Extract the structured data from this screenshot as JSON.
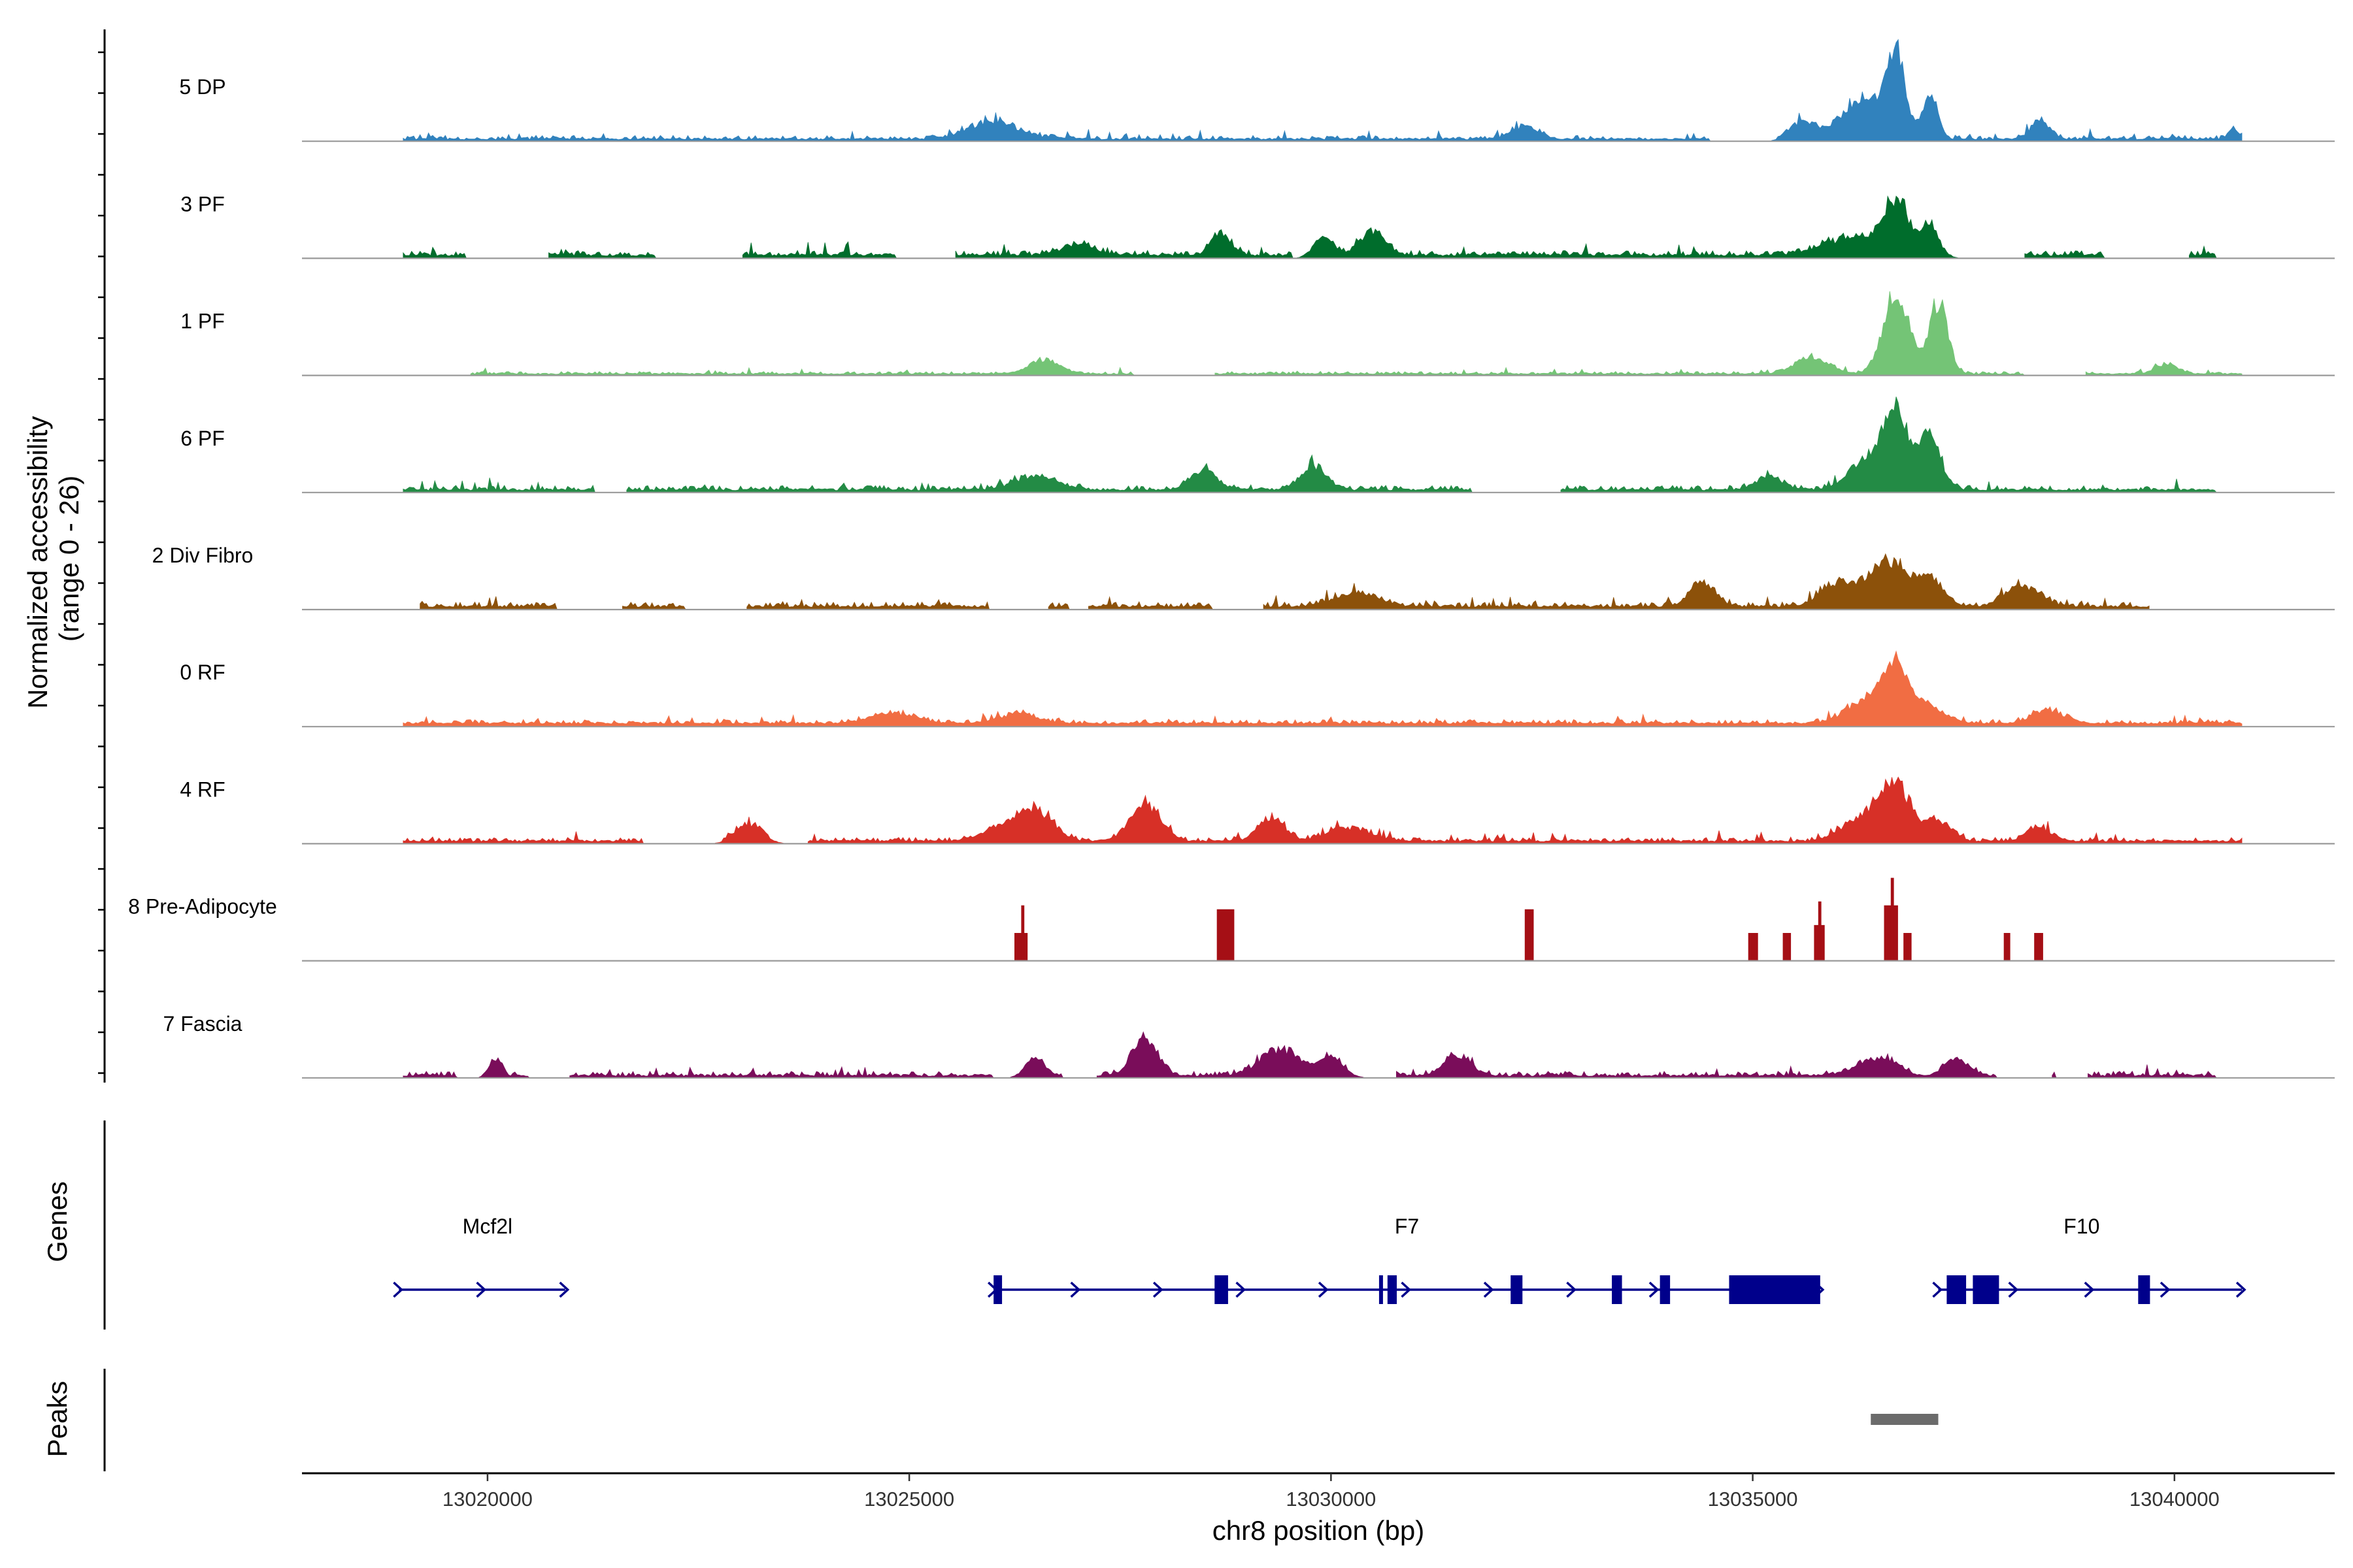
{
  "chart_data": {
    "type": "area",
    "title": "",
    "ylabel_line1": "Normalized accessibility",
    "ylabel_line2": "(range 0 - 26)",
    "ylim": [
      0,
      26
    ],
    "xlabel": "chr8 position (bp)",
    "xlim": [
      13017800,
      13041900
    ],
    "xticks": [
      13020000,
      13025000,
      13030000,
      13035000,
      13040000
    ],
    "xtick_labels": [
      "13020000",
      "13025000",
      "13030000",
      "13035000",
      "13040000"
    ],
    "tracks": [
      {
        "name": "5 DP",
        "color": "#3182bd",
        "start": 13019000,
        "end": 13040800,
        "baseline": 0.4,
        "noise": 1.1,
        "gaps": 0.35,
        "seed": 11,
        "peaks": [
          [
            13026000,
            300,
            5
          ],
          [
            13032300,
            150,
            4
          ],
          [
            13036300,
            250,
            12
          ],
          [
            13036700,
            110,
            24
          ],
          [
            13037100,
            90,
            14
          ],
          [
            13035600,
            150,
            5
          ],
          [
            13038400,
            100,
            6
          ],
          [
            13040700,
            60,
            3
          ]
        ]
      },
      {
        "name": "3 PF",
        "color": "#006d2c",
        "start": 13019000,
        "end": 13040800,
        "baseline": 0.6,
        "noise": 1.4,
        "gaps": 0.2,
        "seed": 23,
        "peaks": [
          [
            13028700,
            120,
            6
          ],
          [
            13030500,
            150,
            7
          ],
          [
            13029900,
            120,
            5
          ],
          [
            13036700,
            150,
            15
          ],
          [
            13036200,
            300,
            7
          ],
          [
            13037100,
            120,
            8
          ],
          [
            13027000,
            200,
            3
          ]
        ]
      },
      {
        "name": "1 PF",
        "color": "#74c476",
        "start": 13019800,
        "end": 13040800,
        "baseline": 0.3,
        "noise": 0.7,
        "gaps": 0.3,
        "seed": 37,
        "peaks": [
          [
            13026600,
            180,
            4
          ],
          [
            13035700,
            200,
            5
          ],
          [
            13036700,
            150,
            25
          ],
          [
            13037200,
            110,
            21
          ],
          [
            13039900,
            120,
            3
          ]
        ]
      },
      {
        "name": "6 PF",
        "color": "#238b45",
        "start": 13019000,
        "end": 13040500,
        "baseline": 0.5,
        "noise": 1.3,
        "gaps": 0.38,
        "seed": 51,
        "peaks": [
          [
            13026500,
            250,
            4
          ],
          [
            13028500,
            150,
            6
          ],
          [
            13029800,
            150,
            7
          ],
          [
            13036400,
            230,
            10
          ],
          [
            13036700,
            150,
            20
          ],
          [
            13037100,
            130,
            15
          ],
          [
            13035200,
            150,
            4
          ]
        ]
      },
      {
        "name": "2 Div Fibro",
        "color": "#8c510a",
        "start": 13019200,
        "end": 13039700,
        "baseline": 0.6,
        "noise": 1.3,
        "gaps": 0.15,
        "seed": 67,
        "peaks": [
          [
            13034400,
            150,
            7
          ],
          [
            13036000,
            200,
            7
          ],
          [
            13036600,
            230,
            13
          ],
          [
            13037100,
            160,
            8
          ],
          [
            13038200,
            200,
            6
          ],
          [
            13030300,
            250,
            4
          ]
        ]
      },
      {
        "name": "0 RF",
        "color": "#f16d43",
        "start": 13019000,
        "end": 13040800,
        "baseline": 0.7,
        "noise": 1.1,
        "gaps": 0.03,
        "seed": 83,
        "peaks": [
          [
            13036700,
            150,
            16
          ],
          [
            13036350,
            230,
            7
          ],
          [
            13037100,
            180,
            5
          ],
          [
            13038500,
            180,
            4
          ],
          [
            13024800,
            250,
            3
          ],
          [
            13026300,
            200,
            3
          ]
        ]
      },
      {
        "name": "4 RF",
        "color": "#d73027",
        "start": 13019000,
        "end": 13040800,
        "baseline": 0.5,
        "noise": 1.1,
        "gaps": 0.22,
        "seed": 97,
        "peaks": [
          [
            13026500,
            200,
            9
          ],
          [
            13026100,
            230,
            4
          ],
          [
            13027800,
            180,
            11
          ],
          [
            13023100,
            160,
            5
          ],
          [
            13029300,
            150,
            7
          ],
          [
            13036700,
            180,
            16
          ],
          [
            13036300,
            230,
            7
          ],
          [
            13037200,
            150,
            6
          ],
          [
            13030200,
            250,
            4
          ],
          [
            13038400,
            150,
            4
          ]
        ]
      },
      {
        "name": "8 Pre-Adipocyte",
        "color": "#a50f15",
        "start": 13026300,
        "end": 13038400,
        "baseline": 0,
        "noise": 0,
        "gaps": 0,
        "seed": 3,
        "blocks": [
          [
            13026250,
            13026400,
            7
          ],
          [
            13026330,
            13026350,
            14
          ],
          [
            13028650,
            13028850,
            13
          ],
          [
            13032300,
            13032400,
            13
          ],
          [
            13034950,
            13035060,
            7
          ],
          [
            13035360,
            13035450,
            7
          ],
          [
            13035730,
            13035850,
            9
          ],
          [
            13035780,
            13035810,
            15
          ],
          [
            13036560,
            13036720,
            14
          ],
          [
            13036640,
            13036660,
            21
          ],
          [
            13036790,
            13036880,
            7
          ],
          [
            13037980,
            13038050,
            7
          ],
          [
            13038340,
            13038440,
            7
          ]
        ]
      },
      {
        "name": "7 Fascia",
        "color": "#7a0d5a",
        "start": 13019000,
        "end": 13040800,
        "baseline": 0.4,
        "noise": 1.3,
        "gaps": 0.3,
        "seed": 113,
        "peaks": [
          [
            13027800,
            150,
            11
          ],
          [
            13029400,
            230,
            8
          ],
          [
            13020100,
            80,
            6
          ],
          [
            13031500,
            150,
            6
          ],
          [
            13026500,
            120,
            6
          ],
          [
            13036500,
            250,
            5
          ],
          [
            13037400,
            150,
            5
          ],
          [
            13030000,
            150,
            5
          ]
        ]
      }
    ],
    "genes": [
      {
        "name": "Mcf2l",
        "label_x": 13020000,
        "start": 13018950,
        "end": 13020920,
        "strand": "+",
        "exons": []
      },
      {
        "name": "F7",
        "label_x": 13030900,
        "start": 13026000,
        "end": 13035800,
        "strand": "+",
        "exons": [
          [
            13026000,
            13026100
          ],
          [
            13028620,
            13028780
          ],
          [
            13030570,
            13030600
          ],
          [
            13030670,
            13030780
          ],
          [
            13032130,
            13032270
          ],
          [
            13033330,
            13033450
          ],
          [
            13033900,
            13034020
          ],
          [
            13034720,
            13035800
          ]
        ]
      },
      {
        "name": "F10",
        "label_x": 13038900,
        "start": 13037200,
        "end": 13040800,
        "strand": "+",
        "exons": [
          [
            13037300,
            13037530
          ],
          [
            13037610,
            13037920
          ],
          [
            13039570,
            13039710
          ]
        ]
      }
    ],
    "peaks_track": [
      [
        13036400,
        13037200
      ]
    ],
    "panel_labels": {
      "genes": "Genes",
      "peaks": "Peaks"
    },
    "colors": {
      "gene": "#00008b",
      "peak": "#6b6b6b",
      "baseline": "#999999"
    }
  }
}
